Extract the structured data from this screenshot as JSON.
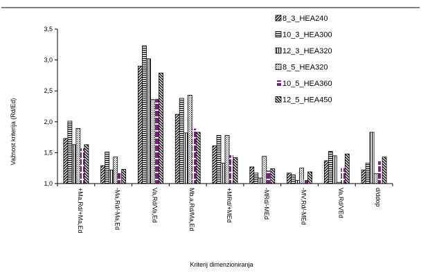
{
  "chart_data": {
    "type": "bar",
    "xlabel": "Kriterij dimenzioniranja",
    "ylabel": "Važnost kriterija (Rd/Ed)",
    "ylim": [
      1.0,
      3.5
    ],
    "yticks": [
      "1,0",
      "1,5",
      "2,0",
      "2,5",
      "3,0",
      "3,5"
    ],
    "legend_position": "top-right",
    "grid": false,
    "categories": [
      "+Ma,Rd/+Ma,Ed",
      "-Ma,Rd/-Ma,Ed",
      "Va,Rd/Va,Ed",
      "Mb,a,Rd/Ma,Ed",
      "+MRd/+MEd",
      "-MRd/-MEd",
      "-MV,Rd/-MEd",
      "Va,Rd/VEd",
      "d/ddop"
    ],
    "series": [
      {
        "name": "8_3_HEA240",
        "pattern": "diag-up",
        "color": "#000000",
        "values": [
          1.73,
          1.29,
          2.9,
          2.12,
          1.61,
          1.27,
          1.17,
          1.37,
          1.22
        ]
      },
      {
        "name": "10_3_HEA300",
        "pattern": "hstripe",
        "color": "#000000",
        "values": [
          2.01,
          1.51,
          3.23,
          2.38,
          1.78,
          1.17,
          1.14,
          1.52,
          1.33
        ]
      },
      {
        "name": "12_3_HEA320",
        "pattern": "vstripe",
        "color": "#000000",
        "values": [
          1.63,
          1.22,
          3.02,
          1.82,
          1.33,
          1.09,
          1.05,
          1.45,
          1.83
        ]
      },
      {
        "name": "8_5_HEA320",
        "pattern": "dots",
        "color": "#000000",
        "values": [
          1.89,
          1.43,
          2.36,
          2.43,
          1.78,
          1.44,
          1.25,
          1.02,
          1.16
        ]
      },
      {
        "name": "10_5_HEA360",
        "pattern": "purple",
        "color": "#7a1f7a",
        "values": [
          1.57,
          1.17,
          2.37,
          1.89,
          1.46,
          1.21,
          1.07,
          1.25,
          1.36
        ]
      },
      {
        "name": "12_5_HEA450",
        "pattern": "diag-down",
        "color": "#000000",
        "values": [
          1.63,
          1.23,
          2.79,
          1.83,
          1.42,
          1.24,
          1.19,
          1.48,
          1.43
        ]
      }
    ]
  }
}
